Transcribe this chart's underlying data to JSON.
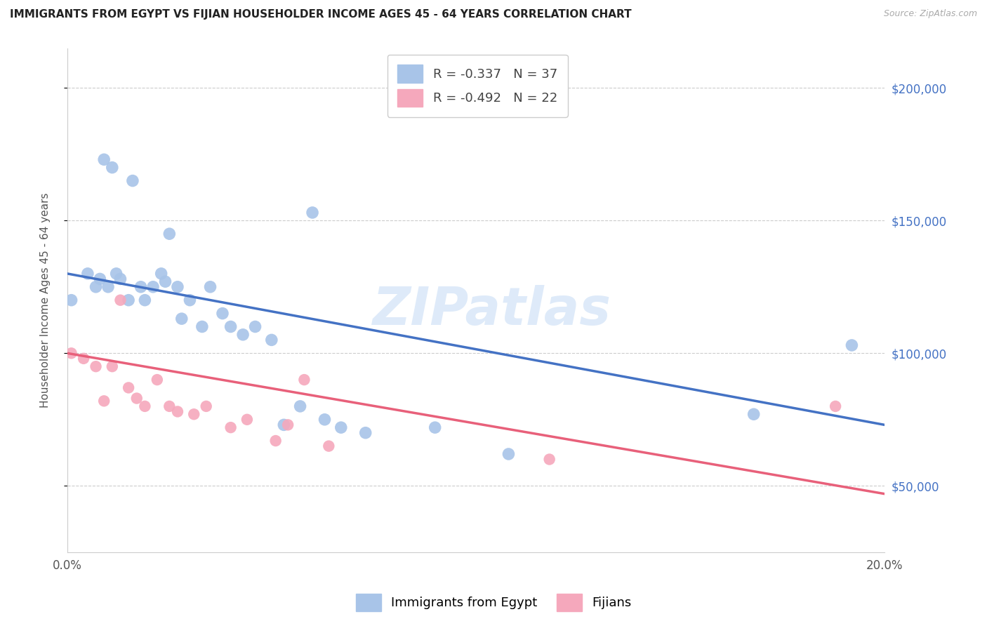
{
  "title": "IMMIGRANTS FROM EGYPT VS FIJIAN HOUSEHOLDER INCOME AGES 45 - 64 YEARS CORRELATION CHART",
  "source": "Source: ZipAtlas.com",
  "ylabel": "Householder Income Ages 45 - 64 years",
  "xlim": [
    0.0,
    0.2
  ],
  "ylim": [
    25000,
    215000
  ],
  "yticks": [
    50000,
    100000,
    150000,
    200000
  ],
  "ytick_labels": [
    "$50,000",
    "$100,000",
    "$150,000",
    "$200,000"
  ],
  "xticks": [
    0.0,
    0.04,
    0.08,
    0.12,
    0.16,
    0.2
  ],
  "xtick_labels": [
    "0.0%",
    "",
    "",
    "",
    "",
    "20.0%"
  ],
  "egypt_R": -0.337,
  "egypt_N": 37,
  "fijian_R": -0.492,
  "fijian_N": 22,
  "egypt_color": "#a8c4e8",
  "fijian_color": "#f5a8bc",
  "egypt_line_color": "#4472c4",
  "fijian_line_color": "#e8607a",
  "legend_label_egypt": "Immigrants from Egypt",
  "legend_label_fijian": "Fijians",
  "watermark": "ZIPatlas",
  "egypt_x": [
    0.001,
    0.005,
    0.007,
    0.008,
    0.009,
    0.01,
    0.011,
    0.012,
    0.013,
    0.015,
    0.016,
    0.018,
    0.019,
    0.021,
    0.023,
    0.024,
    0.025,
    0.027,
    0.028,
    0.03,
    0.033,
    0.035,
    0.038,
    0.04,
    0.043,
    0.046,
    0.05,
    0.053,
    0.057,
    0.06,
    0.063,
    0.067,
    0.073,
    0.09,
    0.108,
    0.168,
    0.192
  ],
  "egypt_y": [
    120000,
    130000,
    125000,
    128000,
    173000,
    125000,
    170000,
    130000,
    128000,
    120000,
    165000,
    125000,
    120000,
    125000,
    130000,
    127000,
    145000,
    125000,
    113000,
    120000,
    110000,
    125000,
    115000,
    110000,
    107000,
    110000,
    105000,
    73000,
    80000,
    153000,
    75000,
    72000,
    70000,
    72000,
    62000,
    77000,
    103000
  ],
  "fijian_x": [
    0.001,
    0.004,
    0.007,
    0.009,
    0.011,
    0.013,
    0.015,
    0.017,
    0.019,
    0.022,
    0.025,
    0.027,
    0.031,
    0.034,
    0.04,
    0.044,
    0.051,
    0.054,
    0.058,
    0.064,
    0.118,
    0.188
  ],
  "fijian_y": [
    100000,
    98000,
    95000,
    82000,
    95000,
    120000,
    87000,
    83000,
    80000,
    90000,
    80000,
    78000,
    77000,
    80000,
    72000,
    75000,
    67000,
    73000,
    90000,
    65000,
    60000,
    80000
  ],
  "egypt_trendline_x": [
    0.0,
    0.2
  ],
  "egypt_trendline_y": [
    130000,
    73000
  ],
  "fijian_trendline_x": [
    0.0,
    0.2
  ],
  "fijian_trendline_y": [
    100000,
    47000
  ]
}
